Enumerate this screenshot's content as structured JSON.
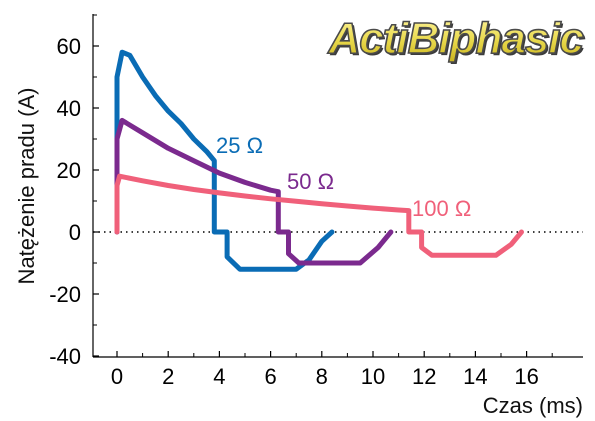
{
  "logo": {
    "text": "ActiBiphasic"
  },
  "chart_data": {
    "type": "line",
    "xlabel": "Czas (ms)",
    "ylabel": "Natężenie pradu (A)",
    "xlim": [
      -1,
      18
    ],
    "ylim": [
      -40,
      70
    ],
    "xticks": [
      0,
      2,
      4,
      6,
      8,
      10,
      12,
      14,
      16
    ],
    "yticks": [
      -40,
      -20,
      0,
      20,
      40,
      60
    ],
    "zero_line": "dotted",
    "series": [
      {
        "name": "25 Ω",
        "color": "#0a6cb5",
        "points": [
          [
            0,
            0
          ],
          [
            0,
            50
          ],
          [
            0.2,
            58
          ],
          [
            0.5,
            57
          ],
          [
            1,
            50
          ],
          [
            1.5,
            44
          ],
          [
            2,
            39
          ],
          [
            2.5,
            35
          ],
          [
            3,
            30
          ],
          [
            3.5,
            26
          ],
          [
            3.8,
            23
          ],
          [
            3.8,
            0
          ],
          [
            4.3,
            0
          ],
          [
            4.3,
            -8
          ],
          [
            4.8,
            -12
          ],
          [
            7,
            -12
          ],
          [
            7.5,
            -9
          ],
          [
            8,
            -3
          ],
          [
            8.4,
            0
          ]
        ]
      },
      {
        "name": "50 Ω",
        "color": "#7b2a8e",
        "points": [
          [
            0,
            0
          ],
          [
            0,
            30
          ],
          [
            0.2,
            36
          ],
          [
            1,
            32
          ],
          [
            2,
            27
          ],
          [
            3,
            23
          ],
          [
            4,
            19
          ],
          [
            5,
            16
          ],
          [
            6,
            13.5
          ],
          [
            6.3,
            13
          ],
          [
            6.3,
            0
          ],
          [
            6.7,
            0
          ],
          [
            6.7,
            -7
          ],
          [
            7.1,
            -10
          ],
          [
            9.5,
            -10
          ],
          [
            10.2,
            -5
          ],
          [
            10.7,
            0
          ]
        ]
      },
      {
        "name": "100 Ω",
        "color": "#f0607a",
        "points": [
          [
            0,
            0
          ],
          [
            0,
            15
          ],
          [
            0.1,
            18
          ],
          [
            1,
            16.5
          ],
          [
            2,
            15
          ],
          [
            3,
            13.7
          ],
          [
            4,
            12.6
          ],
          [
            5,
            11.6
          ],
          [
            6,
            10.7
          ],
          [
            7,
            9.9
          ],
          [
            8,
            9.1
          ],
          [
            9,
            8.4
          ],
          [
            10,
            7.7
          ],
          [
            11,
            7.1
          ],
          [
            11.4,
            6.9
          ],
          [
            11.4,
            0
          ],
          [
            11.9,
            0
          ],
          [
            11.9,
            -5
          ],
          [
            12.3,
            -7.5
          ],
          [
            14.8,
            -7.5
          ],
          [
            15.4,
            -4
          ],
          [
            15.8,
            0
          ]
        ]
      }
    ]
  }
}
